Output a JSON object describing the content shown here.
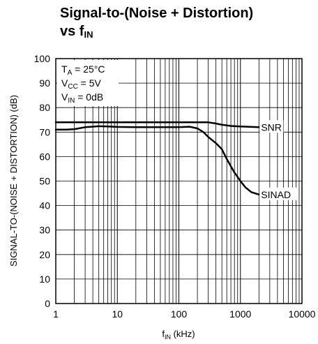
{
  "title": {
    "line1": "Signal-to-(Noise + Distortion)",
    "line2_main": "vs f",
    "line2_sub": "IN"
  },
  "conditions": [
    {
      "main": "T",
      "sub": "A",
      "rest": " = 25°C"
    },
    {
      "main": "V",
      "sub": "CC",
      "rest": " = 5V"
    },
    {
      "main": "V",
      "sub": "IN",
      "rest": " = 0dB"
    }
  ],
  "chart_data": {
    "type": "line",
    "x_scale": "log",
    "xlim": [
      1,
      10000
    ],
    "ylim": [
      0,
      100
    ],
    "grid": true,
    "x_ticks": [
      "1",
      "10",
      "100",
      "1000",
      "10000"
    ],
    "y_ticks": [
      "0",
      "10",
      "20",
      "30",
      "40",
      "50",
      "60",
      "70",
      "80",
      "90",
      "100"
    ],
    "xlabel": {
      "main": "f",
      "sub": "IN",
      "rest": " (kHz)"
    },
    "ylabel": "SIGNAL-TO-(NOISE + DISTORTION) (dB)",
    "series": [
      {
        "name": "SNR",
        "x": [
          1,
          2,
          5,
          10,
          20,
          50,
          100,
          200,
          300,
          400,
          500,
          700,
          1000,
          2000
        ],
        "y": [
          74,
          74,
          74,
          74,
          74,
          74,
          74,
          74,
          74,
          73.5,
          73,
          72.5,
          72.3,
          72
        ]
      },
      {
        "name": "SINAD",
        "x": [
          1,
          1.5,
          2,
          3,
          5,
          7,
          10,
          20,
          50,
          100,
          150,
          200,
          250,
          300,
          400,
          500,
          600,
          700,
          800,
          1000,
          1200,
          1500,
          2000
        ],
        "y": [
          71,
          71,
          71.2,
          72,
          72.4,
          72.3,
          72.1,
          72,
          72,
          72,
          72.2,
          71.5,
          70,
          68,
          65.5,
          63,
          59,
          56,
          53.5,
          50,
          47.5,
          45.5,
          44.5
        ]
      }
    ],
    "colors": {
      "line": "#000000",
      "grid": "#000000",
      "background": "#ffffff"
    }
  }
}
